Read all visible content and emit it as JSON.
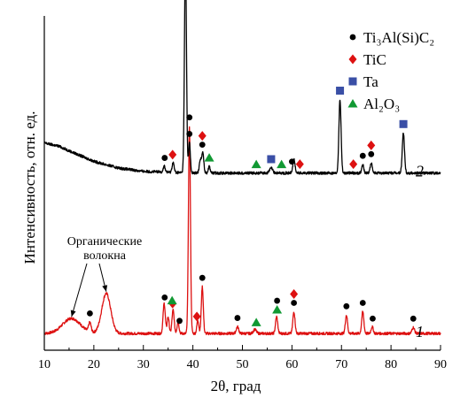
{
  "chart_data": {
    "type": "line",
    "xlabel": "2θ, град",
    "ylabel": "Интенсивность, отн. ед.",
    "xlim": [
      10,
      90
    ],
    "x_ticks": [
      10,
      20,
      30,
      40,
      50,
      60,
      70,
      80,
      90
    ],
    "y_ticks_shown": false,
    "grid": false,
    "legend_position": "top-right",
    "legend": [
      {
        "key": "ti3alsic2",
        "label": "Ti₃Al(Si)C₂",
        "marker": "circle",
        "color": "#000000"
      },
      {
        "key": "tic",
        "label": "TiC",
        "marker": "diamond",
        "color": "#dd1111"
      },
      {
        "key": "ta",
        "label": "Ta",
        "marker": "square",
        "color": "#3a4fa6"
      },
      {
        "key": "al2o3",
        "label": "Al₂O₃",
        "marker": "triangle",
        "color": "#119933"
      }
    ],
    "series": [
      {
        "name": "1",
        "color": "#dd1111",
        "baseline": 0.05,
        "background": [
          [
            10,
            0.05
          ],
          [
            90,
            0.05
          ]
        ],
        "peaks": [
          {
            "x": 15.5,
            "h": 0.045,
            "w": 1.8
          },
          {
            "x": 19.2,
            "h": 0.028,
            "w": 0.25
          },
          {
            "x": 22.5,
            "h": 0.12,
            "w": 0.9
          },
          {
            "x": 34.2,
            "h": 0.09,
            "w": 0.22
          },
          {
            "x": 35.0,
            "h": 0.05,
            "w": 0.2
          },
          {
            "x": 36.0,
            "h": 0.07,
            "w": 0.22
          },
          {
            "x": 37.0,
            "h": 0.035,
            "w": 0.2
          },
          {
            "x": 39.3,
            "h": 0.62,
            "w": 0.2
          },
          {
            "x": 41.0,
            "h": 0.04,
            "w": 0.2
          },
          {
            "x": 41.9,
            "h": 0.14,
            "w": 0.2
          },
          {
            "x": 49.0,
            "h": 0.02,
            "w": 0.25
          },
          {
            "x": 52.5,
            "h": 0.012,
            "w": 0.3
          },
          {
            "x": 56.9,
            "h": 0.05,
            "w": 0.22
          },
          {
            "x": 60.4,
            "h": 0.065,
            "w": 0.22
          },
          {
            "x": 71.0,
            "h": 0.055,
            "w": 0.22
          },
          {
            "x": 74.3,
            "h": 0.065,
            "w": 0.22
          },
          {
            "x": 76.2,
            "h": 0.02,
            "w": 0.22
          },
          {
            "x": 84.5,
            "h": 0.018,
            "w": 0.25
          }
        ],
        "markers": [
          {
            "phase": "ti3alsic2",
            "x": 19.2
          },
          {
            "phase": "ti3alsic2",
            "x": 34.3
          },
          {
            "phase": "tic",
            "x": 35.9
          },
          {
            "phase": "al2o3",
            "x": 35.8
          },
          {
            "phase": "ti3alsic2",
            "x": 37.3
          },
          {
            "phase": "ti3alsic2",
            "x": 39.3
          },
          {
            "phase": "tic",
            "x": 40.8
          },
          {
            "phase": "ti3alsic2",
            "x": 41.9
          },
          {
            "phase": "ti3alsic2",
            "x": 49.0
          },
          {
            "phase": "al2o3",
            "x": 52.8
          },
          {
            "phase": "al2o3",
            "x": 57.0
          },
          {
            "phase": "ti3alsic2",
            "x": 57.0
          },
          {
            "phase": "ti3alsic2",
            "x": 60.4
          },
          {
            "phase": "tic",
            "x": 60.4
          },
          {
            "phase": "ti3alsic2",
            "x": 71.0
          },
          {
            "phase": "ti3alsic2",
            "x": 74.3
          },
          {
            "phase": "ti3alsic2",
            "x": 76.3
          },
          {
            "phase": "ti3alsic2",
            "x": 84.5
          }
        ]
      },
      {
        "name": "2",
        "color": "#000000",
        "baseline": 0.53,
        "background": [
          [
            10,
            0.62
          ],
          [
            13,
            0.61
          ],
          [
            16,
            0.59
          ],
          [
            20,
            0.565
          ],
          [
            25,
            0.545
          ],
          [
            30,
            0.535
          ],
          [
            40,
            0.53
          ],
          [
            90,
            0.53
          ]
        ],
        "peaks": [
          {
            "x": 34.2,
            "h": 0.018,
            "w": 0.2
          },
          {
            "x": 36.0,
            "h": 0.03,
            "w": 0.2
          },
          {
            "x": 38.5,
            "h": 0.65,
            "w": 0.2
          },
          {
            "x": 39.3,
            "h": 0.09,
            "w": 0.18
          },
          {
            "x": 41.5,
            "h": 0.04,
            "w": 0.2
          },
          {
            "x": 42.0,
            "h": 0.06,
            "w": 0.2
          },
          {
            "x": 43.3,
            "h": 0.02,
            "w": 0.2
          },
          {
            "x": 55.8,
            "h": 0.015,
            "w": 0.3
          },
          {
            "x": 60.4,
            "h": 0.04,
            "w": 0.22
          },
          {
            "x": 69.7,
            "h": 0.22,
            "w": 0.22
          },
          {
            "x": 74.3,
            "h": 0.025,
            "w": 0.2
          },
          {
            "x": 76.0,
            "h": 0.03,
            "w": 0.2
          },
          {
            "x": 82.5,
            "h": 0.12,
            "w": 0.22
          }
        ],
        "markers": [
          {
            "phase": "ti3alsic2",
            "x": 34.3
          },
          {
            "phase": "tic",
            "x": 35.9
          },
          {
            "phase": "ta",
            "x": 38.4
          },
          {
            "phase": "ti3alsic2",
            "x": 39.3
          },
          {
            "phase": "ti3alsic2",
            "x": 41.9
          },
          {
            "phase": "tic",
            "x": 41.9
          },
          {
            "phase": "al2o3",
            "x": 43.3
          },
          {
            "phase": "al2o3",
            "x": 52.8
          },
          {
            "phase": "ta",
            "x": 55.8
          },
          {
            "phase": "al2o3",
            "x": 57.9
          },
          {
            "phase": "ti3alsic2",
            "x": 60.0
          },
          {
            "phase": "tic",
            "x": 61.6
          },
          {
            "phase": "ta",
            "x": 69.7
          },
          {
            "phase": "tic",
            "x": 72.4
          },
          {
            "phase": "ti3alsic2",
            "x": 74.3
          },
          {
            "phase": "ti3alsic2",
            "x": 76.0
          },
          {
            "phase": "tic",
            "x": 76.0
          },
          {
            "phase": "ta",
            "x": 82.5
          }
        ]
      }
    ],
    "annotation": {
      "text_lines": [
        "Органические",
        "волокна"
      ],
      "arrow_targets_x": [
        15.5,
        22.5
      ]
    }
  }
}
